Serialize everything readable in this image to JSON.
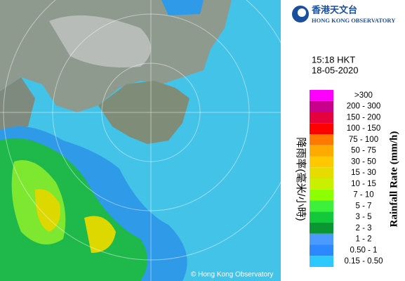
{
  "header": {
    "logo_chinese": "香港天文台",
    "logo_english": "HONG KONG OBSERVATORY"
  },
  "timestamp": {
    "time": "15:18 HKT",
    "date": "18-05-2020"
  },
  "legend": {
    "title_chinese": "降雨率(毫米/小時)",
    "title_english": "Rainfall Rate (mm/h)",
    "items": [
      {
        "label": ">300",
        "color": "#ff00ff"
      },
      {
        "label": "200 - 300",
        "color": "#c8008c"
      },
      {
        "label": "150 - 200",
        "color": "#e6003c"
      },
      {
        "label": "100 - 150",
        "color": "#ff0000"
      },
      {
        "label": "75 - 100",
        "color": "#ff7800"
      },
      {
        "label": "50 - 75",
        "color": "#ffaa00"
      },
      {
        "label": "30 - 50",
        "color": "#ffc800"
      },
      {
        "label": "15 - 30",
        "color": "#e6dc00"
      },
      {
        "label": "10 - 15",
        "color": "#c8f000"
      },
      {
        "label": "7 - 10",
        "color": "#8cff00"
      },
      {
        "label": "5 - 7",
        "color": "#3cf03c"
      },
      {
        "label": "3 - 5",
        "color": "#14c83c"
      },
      {
        "label": "2 - 3",
        "color": "#0a9632"
      },
      {
        "label": "1 - 2",
        "color": "#4b9bff"
      },
      {
        "label": "0.50 - 1",
        "color": "#2d87ff"
      },
      {
        "label": "0.15 - 0.50",
        "color": "#2dc8ff"
      }
    ]
  },
  "map": {
    "copyright": "© Hong Kong Observatory"
  }
}
